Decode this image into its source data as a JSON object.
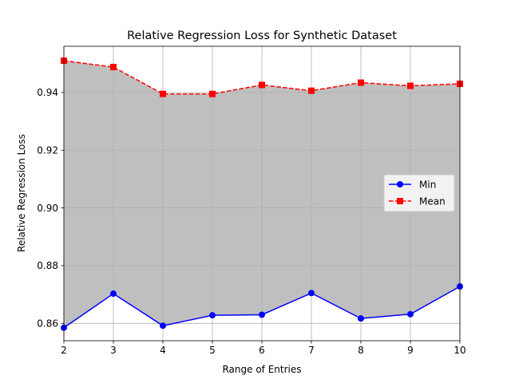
{
  "chart_data": {
    "type": "line",
    "title": "Relative Regression Loss for Synthetic Dataset",
    "xlabel": "Range of Entries",
    "ylabel": "Relative Regression Loss",
    "x": [
      2,
      3,
      4,
      5,
      6,
      7,
      8,
      9,
      10
    ],
    "xlim": [
      2,
      10
    ],
    "ylim": [
      0.854,
      0.956
    ],
    "xticks": [
      "2",
      "3",
      "4",
      "5",
      "6",
      "7",
      "8",
      "9",
      "10"
    ],
    "yticks": [
      "0.86",
      "0.88",
      "0.90",
      "0.92",
      "0.94"
    ],
    "grid": true,
    "legend_position": "center-right",
    "fill_between": {
      "from": "Min",
      "to": "Mean",
      "color": "#bfbfbf"
    },
    "series": [
      {
        "name": "Min",
        "values": [
          0.8585,
          0.8703,
          0.8592,
          0.8628,
          0.863,
          0.8705,
          0.8617,
          0.8632,
          0.8728
        ],
        "color": "#0000ff",
        "marker": "circle",
        "linestyle": "solid"
      },
      {
        "name": "Mean",
        "values": [
          0.951,
          0.9488,
          0.9395,
          0.9395,
          0.9426,
          0.9406,
          0.9434,
          0.9423,
          0.943
        ],
        "color": "#ff0000",
        "marker": "square",
        "linestyle": "dashed"
      }
    ]
  }
}
